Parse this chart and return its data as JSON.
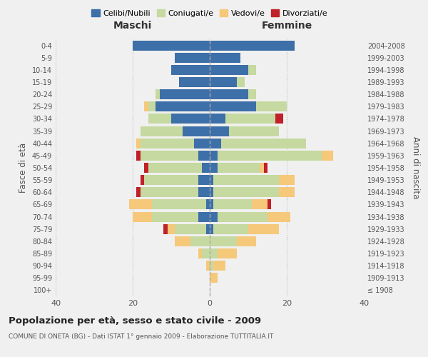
{
  "age_groups": [
    "100+",
    "95-99",
    "90-94",
    "85-89",
    "80-84",
    "75-79",
    "70-74",
    "65-69",
    "60-64",
    "55-59",
    "50-54",
    "45-49",
    "40-44",
    "35-39",
    "30-34",
    "25-29",
    "20-24",
    "15-19",
    "10-14",
    "5-9",
    "0-4"
  ],
  "birth_years": [
    "≤ 1908",
    "1909-1913",
    "1914-1918",
    "1919-1923",
    "1924-1928",
    "1929-1933",
    "1934-1938",
    "1939-1943",
    "1944-1948",
    "1949-1953",
    "1954-1958",
    "1959-1963",
    "1964-1968",
    "1969-1973",
    "1974-1978",
    "1979-1983",
    "1984-1988",
    "1989-1993",
    "1994-1998",
    "1999-2003",
    "2004-2008"
  ],
  "male": {
    "celibi": [
      0,
      0,
      0,
      0,
      0,
      1,
      3,
      1,
      3,
      3,
      2,
      3,
      4,
      7,
      10,
      14,
      13,
      8,
      10,
      9,
      20
    ],
    "coniugati": [
      0,
      0,
      0,
      2,
      5,
      8,
      12,
      14,
      15,
      14,
      14,
      15,
      14,
      11,
      6,
      2,
      1,
      0,
      0,
      0,
      0
    ],
    "vedovi": [
      0,
      0,
      1,
      1,
      4,
      2,
      5,
      6,
      0,
      0,
      0,
      0,
      1,
      0,
      0,
      1,
      0,
      0,
      0,
      0,
      0
    ],
    "divorziati": [
      0,
      0,
      0,
      0,
      0,
      1,
      0,
      0,
      1,
      1,
      1,
      1,
      0,
      0,
      0,
      0,
      0,
      0,
      0,
      0,
      0
    ]
  },
  "female": {
    "nubili": [
      0,
      0,
      0,
      0,
      0,
      1,
      2,
      1,
      1,
      1,
      2,
      2,
      3,
      5,
      4,
      12,
      10,
      7,
      10,
      8,
      22
    ],
    "coniugate": [
      0,
      0,
      1,
      2,
      7,
      9,
      13,
      10,
      17,
      17,
      11,
      27,
      22,
      13,
      13,
      8,
      2,
      2,
      2,
      0,
      0
    ],
    "vedove": [
      0,
      2,
      3,
      5,
      5,
      8,
      6,
      4,
      4,
      4,
      1,
      3,
      0,
      0,
      0,
      0,
      0,
      0,
      0,
      0,
      0
    ],
    "divorziate": [
      0,
      0,
      0,
      0,
      0,
      0,
      0,
      1,
      0,
      0,
      1,
      0,
      0,
      0,
      2,
      0,
      0,
      0,
      0,
      0,
      0
    ]
  },
  "colors": {
    "celibi": "#3d6fa8",
    "coniugati": "#c5d9a0",
    "vedovi": "#f5c87a",
    "divorziati": "#c0202a"
  },
  "title": "Popolazione per età, sesso e stato civile - 2009",
  "subtitle": "COMUNE DI ONETA (BG) - Dati ISTAT 1° gennaio 2009 - Elaborazione TUTTITALIA.IT",
  "xlabel_left": "Maschi",
  "xlabel_right": "Femmine",
  "ylabel_left": "Fasce di età",
  "ylabel_right": "Anni di nascita",
  "xlim": 40,
  "background_color": "#f0f0f0",
  "legend_labels": [
    "Celibi/Nubili",
    "Coniugati/e",
    "Vedovi/e",
    "Divorziati/e"
  ]
}
